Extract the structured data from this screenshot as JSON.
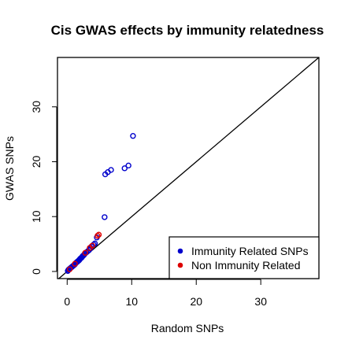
{
  "chart_data": {
    "type": "scatter",
    "title": "Cis GWAS effects by immunity relatedness",
    "xlabel": "Random SNPs",
    "ylabel": "GWAS SNPs",
    "xlim": [
      -1.5,
      39.0
    ],
    "ylim": [
      -1.3,
      39.0
    ],
    "xticks": [
      0,
      10,
      20,
      30
    ],
    "yticks": [
      0,
      10,
      20,
      30
    ],
    "reference_line": "y = x",
    "legend_position": "bottom-right",
    "series": [
      {
        "name": "Immunity Related SNPs",
        "color": "#0000cc",
        "marker": "open-circle",
        "points": [
          [
            0.1,
            0.1
          ],
          [
            0.2,
            0.3
          ],
          [
            0.3,
            0.4
          ],
          [
            0.4,
            0.5
          ],
          [
            0.5,
            0.6
          ],
          [
            0.6,
            0.7
          ],
          [
            0.7,
            0.8
          ],
          [
            0.8,
            0.9
          ],
          [
            0.9,
            1.0
          ],
          [
            1.0,
            1.1
          ],
          [
            1.1,
            1.2
          ],
          [
            1.2,
            1.3
          ],
          [
            1.3,
            1.5
          ],
          [
            1.4,
            1.6
          ],
          [
            1.5,
            1.7
          ],
          [
            1.6,
            1.8
          ],
          [
            1.7,
            1.9
          ],
          [
            1.8,
            2.0
          ],
          [
            1.9,
            2.1
          ],
          [
            2.0,
            2.3
          ],
          [
            2.1,
            2.4
          ],
          [
            2.2,
            2.5
          ],
          [
            2.3,
            2.6
          ],
          [
            2.4,
            2.8
          ],
          [
            2.5,
            2.9
          ],
          [
            2.6,
            3.0
          ],
          [
            2.7,
            3.2
          ],
          [
            2.8,
            3.3
          ],
          [
            3.0,
            3.5
          ],
          [
            3.2,
            3.7
          ],
          [
            3.4,
            3.9
          ],
          [
            3.6,
            4.2
          ],
          [
            3.8,
            4.6
          ],
          [
            4.1,
            4.9
          ],
          [
            4.3,
            5.1
          ],
          [
            4.6,
            6.2
          ],
          [
            5.8,
            9.9
          ],
          [
            5.9,
            17.7
          ],
          [
            6.3,
            18.1
          ],
          [
            6.8,
            18.5
          ],
          [
            8.9,
            18.8
          ],
          [
            9.5,
            19.3
          ],
          [
            10.2,
            24.7
          ]
        ]
      },
      {
        "name": "Non Immunity Related",
        "color": "#dd0000",
        "marker": "open-circle",
        "points": [
          [
            0.4,
            0.4
          ],
          [
            1.2,
            1.4
          ],
          [
            2.8,
            3.4
          ],
          [
            3.5,
            4.3
          ],
          [
            3.9,
            4.7
          ],
          [
            4.7,
            6.5
          ],
          [
            4.9,
            6.7
          ]
        ]
      }
    ]
  }
}
